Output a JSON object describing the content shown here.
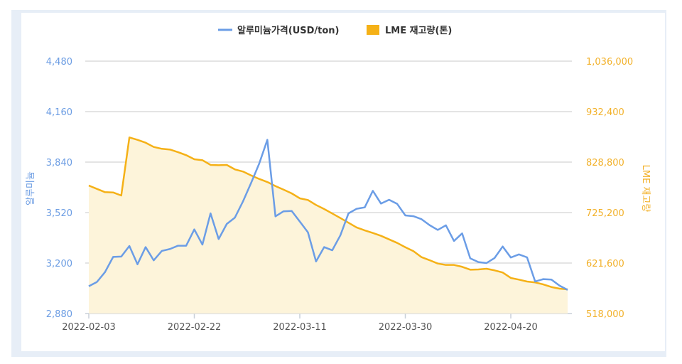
{
  "chart_data": {
    "type": "line",
    "legend": {
      "position": "top",
      "items": [
        "알루미늄가격(USD/ton)",
        "LME 재고량(톤)"
      ]
    },
    "y_left": {
      "label": "알루미늄",
      "range": [
        2880,
        4480
      ],
      "ticks": [
        "2,880",
        "3,200",
        "3,520",
        "3,840",
        "4,160",
        "4,480"
      ]
    },
    "y_right": {
      "label": "LME 재고량",
      "range": [
        518000,
        1036000
      ],
      "ticks": [
        "518,000",
        "621,600",
        "725,200",
        "828,800",
        "932,400",
        "1,036,000"
      ]
    },
    "grid": true,
    "x_tick_labels": [
      "2022-02-03",
      "2022-02-22",
      "2022-03-11",
      "2022-03-30",
      "2022-04-20"
    ],
    "x": [
      "2022-02-03",
      "2022-02-04",
      "2022-02-07",
      "2022-02-08",
      "2022-02-09",
      "2022-02-10",
      "2022-02-11",
      "2022-02-14",
      "2022-02-15",
      "2022-02-16",
      "2022-02-17",
      "2022-02-18",
      "2022-02-21",
      "2022-02-22",
      "2022-02-23",
      "2022-02-24",
      "2022-02-25",
      "2022-02-28",
      "2022-03-01",
      "2022-03-02",
      "2022-03-03",
      "2022-03-04",
      "2022-03-07",
      "2022-03-08",
      "2022-03-09",
      "2022-03-10",
      "2022-03-11",
      "2022-03-14",
      "2022-03-15",
      "2022-03-16",
      "2022-03-17",
      "2022-03-18",
      "2022-03-21",
      "2022-03-22",
      "2022-03-23",
      "2022-03-24",
      "2022-03-25",
      "2022-03-28",
      "2022-03-29",
      "2022-03-30",
      "2022-03-31",
      "2022-04-01",
      "2022-04-04",
      "2022-04-05",
      "2022-04-06",
      "2022-04-07",
      "2022-04-08",
      "2022-04-11",
      "2022-04-12",
      "2022-04-13",
      "2022-04-14",
      "2022-04-19",
      "2022-04-20",
      "2022-04-21",
      "2022-04-22",
      "2022-04-25",
      "2022-04-26",
      "2022-04-27",
      "2022-04-28",
      "2022-04-29"
    ],
    "series": [
      {
        "name": "알루미늄가격(USD/ton)",
        "axis": "left",
        "type": "line",
        "color": "#6b9de6",
        "values": [
          3053,
          3080,
          3143,
          3239,
          3241,
          3308,
          3192,
          3301,
          3217,
          3277,
          3289,
          3310,
          3310,
          3413,
          3317,
          3515,
          3352,
          3448,
          3488,
          3591,
          3708,
          3831,
          3981,
          3496,
          3528,
          3530,
          3463,
          3395,
          3210,
          3301,
          3281,
          3376,
          3515,
          3544,
          3553,
          3658,
          3577,
          3601,
          3575,
          3502,
          3497,
          3478,
          3440,
          3410,
          3439,
          3340,
          3388,
          3230,
          3206,
          3200,
          3232,
          3305,
          3235,
          3255,
          3236,
          3083,
          3098,
          3095,
          3057,
          3030
        ]
      },
      {
        "name": "LME 재고량(톤)",
        "axis": "right",
        "type": "area",
        "color": "#f5b117",
        "fill": "#fdf4da",
        "values": [
          780700,
          773800,
          767100,
          766500,
          760200,
          879400,
          874500,
          868600,
          859900,
          856100,
          854600,
          849200,
          843000,
          834600,
          832700,
          823000,
          822500,
          823000,
          813800,
          809400,
          801500,
          794200,
          787900,
          779600,
          772300,
          764600,
          754400,
          751000,
          740800,
          732500,
          723300,
          714000,
          704300,
          694600,
          688700,
          683300,
          677500,
          670200,
          662900,
          654100,
          646000,
          633700,
          627400,
          620600,
          617700,
          617700,
          613900,
          608000,
          608500,
          609900,
          606600,
          602200,
          591000,
          587600,
          583700,
          581800,
          577800,
          572400,
          569100,
          567600
        ]
      }
    ]
  }
}
